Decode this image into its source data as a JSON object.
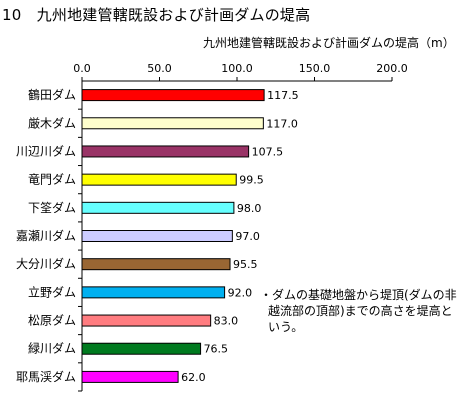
{
  "page": {
    "title": "10　九州地建管轄既設および計画ダムの堤高"
  },
  "chart_data": {
    "type": "bar",
    "orientation": "horizontal",
    "title": "九州地建管轄既設および計画ダムの堤高",
    "xlabel": "九州地建管轄既設および計画ダムの堤高（m）",
    "ylabel": "",
    "xlim": [
      0,
      200
    ],
    "x_ticks": [
      "0.0",
      "50.0",
      "100.0",
      "150.0",
      "200.0"
    ],
    "x_axis_position": "top",
    "grid": false,
    "legend": "none",
    "categories": [
      "鶴田ダム",
      "厳木ダム",
      "川辺川ダム",
      "竜門ダム",
      "下筌ダム",
      "嘉瀬川ダム",
      "大分川ダム",
      "立野ダム",
      "松原ダム",
      "緑川ダム",
      "耶馬渓ダム"
    ],
    "values": [
      117.5,
      117.0,
      107.5,
      99.5,
      98.0,
      97.0,
      95.5,
      92.0,
      83.0,
      76.5,
      62.0
    ],
    "value_labels": [
      "117.5",
      "117.0",
      "107.5",
      "99.5",
      "98.0",
      "97.0",
      "95.5",
      "92.0",
      "83.0",
      "76.5",
      "62.0"
    ],
    "bar_colors": [
      "#ff0000",
      "#ffffcc",
      "#993366",
      "#ffff00",
      "#66ffff",
      "#ccccff",
      "#996633",
      "#00b0f0",
      "#ff7c80",
      "#007a1f",
      "#ff00ff"
    ],
    "annotation": "・ダムの基礎地盤から堤頂(ダムの非越流部の頂部)までの高さを堤高という。"
  }
}
